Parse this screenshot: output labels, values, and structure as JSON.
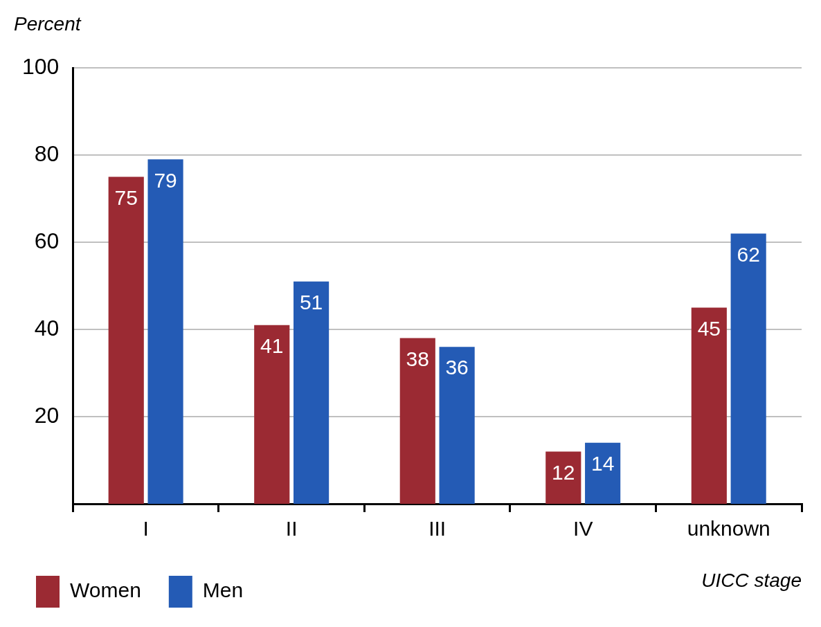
{
  "chart_data": {
    "type": "bar",
    "ylabel": "Percent",
    "xlabel": "UICC stage",
    "categories": [
      "I",
      "II",
      "III",
      "IV",
      "unknown"
    ],
    "series": [
      {
        "name": "Women",
        "color": "#9b2a33",
        "values": [
          75,
          41,
          38,
          12,
          45
        ]
      },
      {
        "name": "Men",
        "color": "#245bb5",
        "values": [
          79,
          51,
          36,
          14,
          62
        ]
      }
    ],
    "ylim": [
      0,
      100
    ],
    "yticks": [
      20,
      40,
      60,
      80,
      100
    ],
    "grid": true,
    "legend": "bottom left",
    "data_labels": true
  }
}
